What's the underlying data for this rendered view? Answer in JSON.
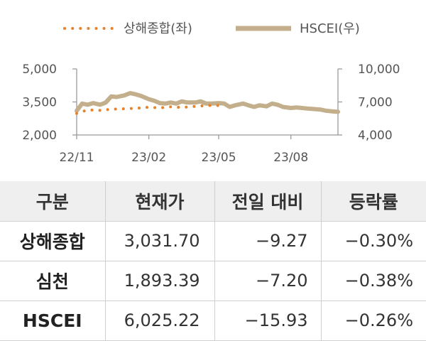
{
  "chart_data": {
    "type": "line",
    "legend": {
      "placement": "top-center",
      "items": [
        {
          "label": "상해종합(좌)",
          "style": "dotted",
          "color": "#E8822A",
          "axis": "left"
        },
        {
          "label": "HSCEI(우)",
          "style": "solid",
          "color": "#C3AF8C",
          "axis": "right"
        }
      ]
    },
    "x_ticks": [
      "22/11",
      "23/02",
      "23/05",
      "23/08"
    ],
    "x_range": [
      "2022-11-01",
      "2023-09-30"
    ],
    "left_axis": {
      "range": [
        2000,
        5000
      ],
      "ticks": [
        "5,000",
        "3,500",
        "2,000"
      ],
      "tick_values": [
        5000,
        3500,
        2000
      ]
    },
    "right_axis": {
      "range": [
        4000,
        10000
      ],
      "ticks": [
        "10,000",
        "7,000",
        "4,000"
      ],
      "tick_values": [
        10000,
        7000,
        4000
      ]
    },
    "grid": false,
    "series": [
      {
        "name": "상해종합(좌)",
        "axis": "left",
        "x": [
          "2022-11-01",
          "2022-11-15",
          "2022-12-01",
          "2022-12-15",
          "2023-01-01",
          "2023-01-15",
          "2023-02-01",
          "2023-02-15",
          "2023-03-01",
          "2023-03-15",
          "2023-04-01",
          "2023-04-15",
          "2023-05-01"
        ],
        "y": [
          2980,
          3140,
          3120,
          3170,
          3190,
          3210,
          3260,
          3230,
          3280,
          3250,
          3300,
          3340,
          3340
        ]
      },
      {
        "name": "HSCEI(우)",
        "axis": "right",
        "x": [
          "2022-11-01",
          "2022-11-08",
          "2022-11-15",
          "2022-11-22",
          "2022-12-01",
          "2022-12-08",
          "2022-12-15",
          "2022-12-22",
          "2023-01-01",
          "2023-01-08",
          "2023-01-15",
          "2023-01-22",
          "2023-02-01",
          "2023-02-08",
          "2023-02-15",
          "2023-02-22",
          "2023-03-01",
          "2023-03-08",
          "2023-03-15",
          "2023-03-22",
          "2023-04-01",
          "2023-04-08",
          "2023-04-15",
          "2023-04-22",
          "2023-05-01",
          "2023-05-08",
          "2023-05-15",
          "2023-05-22",
          "2023-06-01",
          "2023-06-08",
          "2023-06-15",
          "2023-06-22",
          "2023-07-01",
          "2023-07-08",
          "2023-07-15",
          "2023-07-22",
          "2023-08-01",
          "2023-08-08",
          "2023-08-15",
          "2023-08-22",
          "2023-09-01",
          "2023-09-08",
          "2023-09-15",
          "2023-09-22",
          "2023-09-30"
        ],
        "y": [
          6200,
          6850,
          6750,
          6900,
          6750,
          6950,
          7500,
          7450,
          7600,
          7800,
          7700,
          7550,
          7250,
          7100,
          6900,
          6850,
          6950,
          6850,
          7050,
          6950,
          6950,
          7050,
          6850,
          6850,
          6900,
          6850,
          6550,
          6700,
          6850,
          6700,
          6550,
          6700,
          6600,
          6850,
          6750,
          6550,
          6450,
          6500,
          6450,
          6400,
          6350,
          6300,
          6200,
          6150,
          6100
        ]
      }
    ]
  },
  "table": {
    "headers": [
      "구분",
      "현재가",
      "전일 대비",
      "등락률"
    ],
    "rows": [
      {
        "name": "상해종합",
        "price": "3,031.70",
        "change": "−9.27",
        "pct": "−0.30%"
      },
      {
        "name": "심천",
        "price": "1,893.39",
        "change": "−7.20",
        "pct": "−0.38%"
      },
      {
        "name": "HSCEI",
        "price": "6,025.22",
        "change": "−15.93",
        "pct": "−0.26%"
      }
    ]
  }
}
